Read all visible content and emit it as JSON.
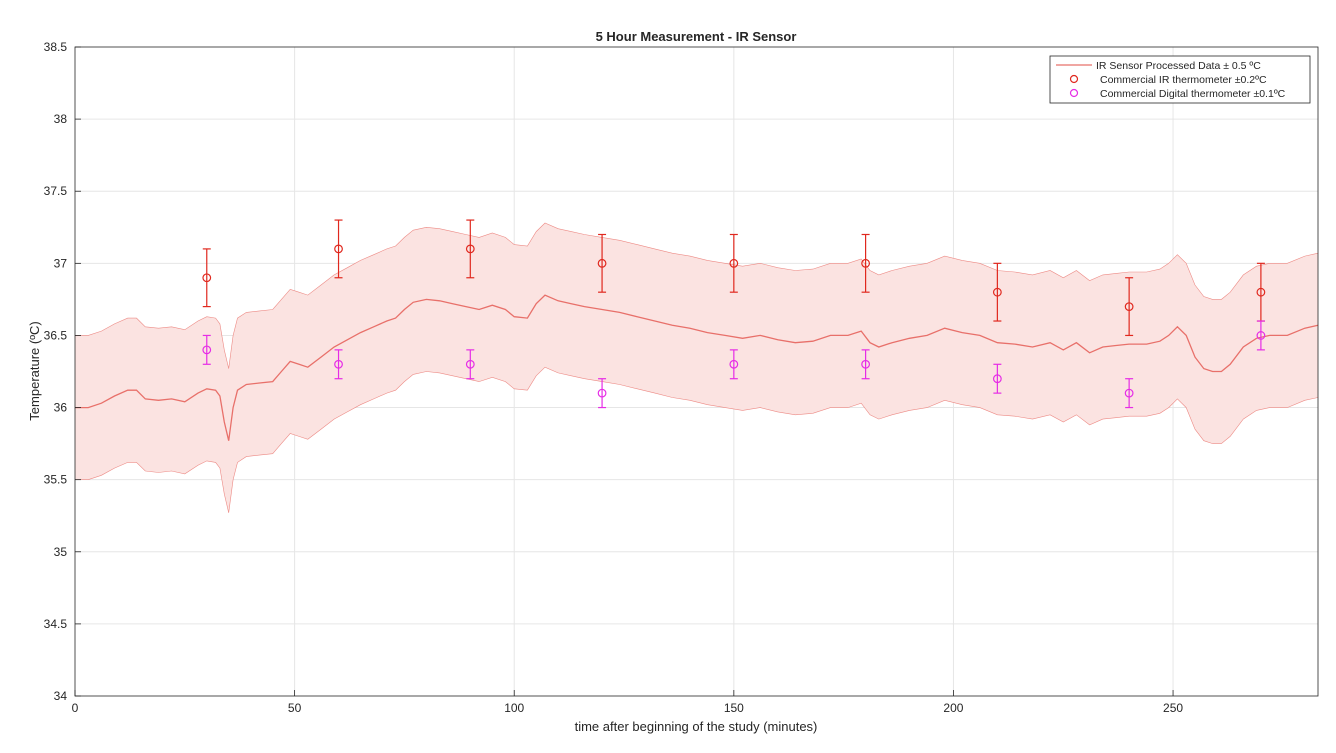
{
  "chart_data": {
    "type": "line",
    "title": "5 Hour Measurement - IR Sensor",
    "xlabel": "time after beginning of the study (minutes)",
    "ylabel": "Temperature (ºC)",
    "xlim": [
      0,
      283
    ],
    "ylim": [
      34,
      38.5
    ],
    "x_ticks": [
      0,
      50,
      100,
      150,
      200,
      250
    ],
    "y_ticks": [
      34,
      34.5,
      35,
      35.5,
      36,
      36.5,
      37,
      37.5,
      38,
      38.5
    ],
    "grid": true,
    "legend_position": "top-right",
    "series": [
      {
        "name": "IR Sensor Processed Data ± 0.5 ºC",
        "kind": "line_with_band",
        "band_half_width": 0.5,
        "color": "#e8706a",
        "band_color": "#fbe3e1",
        "points": [
          [
            0,
            36.0
          ],
          [
            3,
            36.0
          ],
          [
            6,
            36.03
          ],
          [
            9,
            36.08
          ],
          [
            12,
            36.12
          ],
          [
            14,
            36.12
          ],
          [
            16,
            36.06
          ],
          [
            19,
            36.05
          ],
          [
            22,
            36.06
          ],
          [
            25,
            36.04
          ],
          [
            28,
            36.1
          ],
          [
            30,
            36.13
          ],
          [
            32,
            36.12
          ],
          [
            33,
            36.08
          ],
          [
            34,
            35.9
          ],
          [
            35,
            35.77
          ],
          [
            36,
            36.0
          ],
          [
            37,
            36.12
          ],
          [
            39,
            36.16
          ],
          [
            42,
            36.17
          ],
          [
            45,
            36.18
          ],
          [
            47,
            36.25
          ],
          [
            49,
            36.32
          ],
          [
            51,
            36.3
          ],
          [
            53,
            36.28
          ],
          [
            56,
            36.35
          ],
          [
            59,
            36.42
          ],
          [
            62,
            36.47
          ],
          [
            65,
            36.52
          ],
          [
            68,
            36.56
          ],
          [
            71,
            36.6
          ],
          [
            73,
            36.62
          ],
          [
            75,
            36.68
          ],
          [
            77,
            36.73
          ],
          [
            80,
            36.75
          ],
          [
            83,
            36.74
          ],
          [
            86,
            36.72
          ],
          [
            89,
            36.7
          ],
          [
            92,
            36.68
          ],
          [
            95,
            36.71
          ],
          [
            98,
            36.68
          ],
          [
            100,
            36.63
          ],
          [
            103,
            36.62
          ],
          [
            105,
            36.72
          ],
          [
            107,
            36.78
          ],
          [
            110,
            36.74
          ],
          [
            113,
            36.72
          ],
          [
            116,
            36.7
          ],
          [
            120,
            36.68
          ],
          [
            124,
            36.66
          ],
          [
            128,
            36.63
          ],
          [
            132,
            36.6
          ],
          [
            136,
            36.57
          ],
          [
            140,
            36.55
          ],
          [
            144,
            36.52
          ],
          [
            148,
            36.5
          ],
          [
            152,
            36.48
          ],
          [
            156,
            36.5
          ],
          [
            160,
            36.47
          ],
          [
            164,
            36.45
          ],
          [
            168,
            36.46
          ],
          [
            172,
            36.5
          ],
          [
            176,
            36.5
          ],
          [
            179,
            36.53
          ],
          [
            181,
            36.45
          ],
          [
            183,
            36.42
          ],
          [
            186,
            36.45
          ],
          [
            190,
            36.48
          ],
          [
            194,
            36.5
          ],
          [
            198,
            36.55
          ],
          [
            202,
            36.52
          ],
          [
            206,
            36.5
          ],
          [
            210,
            36.45
          ],
          [
            214,
            36.44
          ],
          [
            218,
            36.42
          ],
          [
            222,
            36.45
          ],
          [
            225,
            36.4
          ],
          [
            228,
            36.45
          ],
          [
            231,
            36.38
          ],
          [
            234,
            36.42
          ],
          [
            237,
            36.43
          ],
          [
            240,
            36.44
          ],
          [
            244,
            36.44
          ],
          [
            247,
            36.46
          ],
          [
            249,
            36.5
          ],
          [
            251,
            36.56
          ],
          [
            253,
            36.5
          ],
          [
            255,
            36.35
          ],
          [
            257,
            36.27
          ],
          [
            259,
            36.25
          ],
          [
            261,
            36.25
          ],
          [
            263,
            36.3
          ],
          [
            266,
            36.42
          ],
          [
            269,
            36.48
          ],
          [
            272,
            36.5
          ],
          [
            276,
            36.5
          ],
          [
            280,
            36.55
          ],
          [
            283,
            36.57
          ]
        ]
      },
      {
        "name": "Commercial IR thermometer ±0.2ºC",
        "kind": "markers_with_errorbars",
        "error": 0.2,
        "color": "#e0281e",
        "x": [
          30,
          60,
          90,
          120,
          150,
          180,
          210,
          240,
          270
        ],
        "y": [
          36.9,
          37.1,
          37.1,
          37.0,
          37.0,
          37.0,
          36.8,
          36.7,
          36.8
        ]
      },
      {
        "name": "Commercial Digital thermometer ±0.1ºC",
        "kind": "markers_with_errorbars",
        "error": 0.1,
        "color": "#e62de6",
        "x": [
          30,
          60,
          90,
          120,
          150,
          180,
          210,
          240,
          270
        ],
        "y": [
          36.4,
          36.3,
          36.3,
          36.1,
          36.3,
          36.3,
          36.2,
          36.1,
          36.5
        ]
      }
    ]
  }
}
